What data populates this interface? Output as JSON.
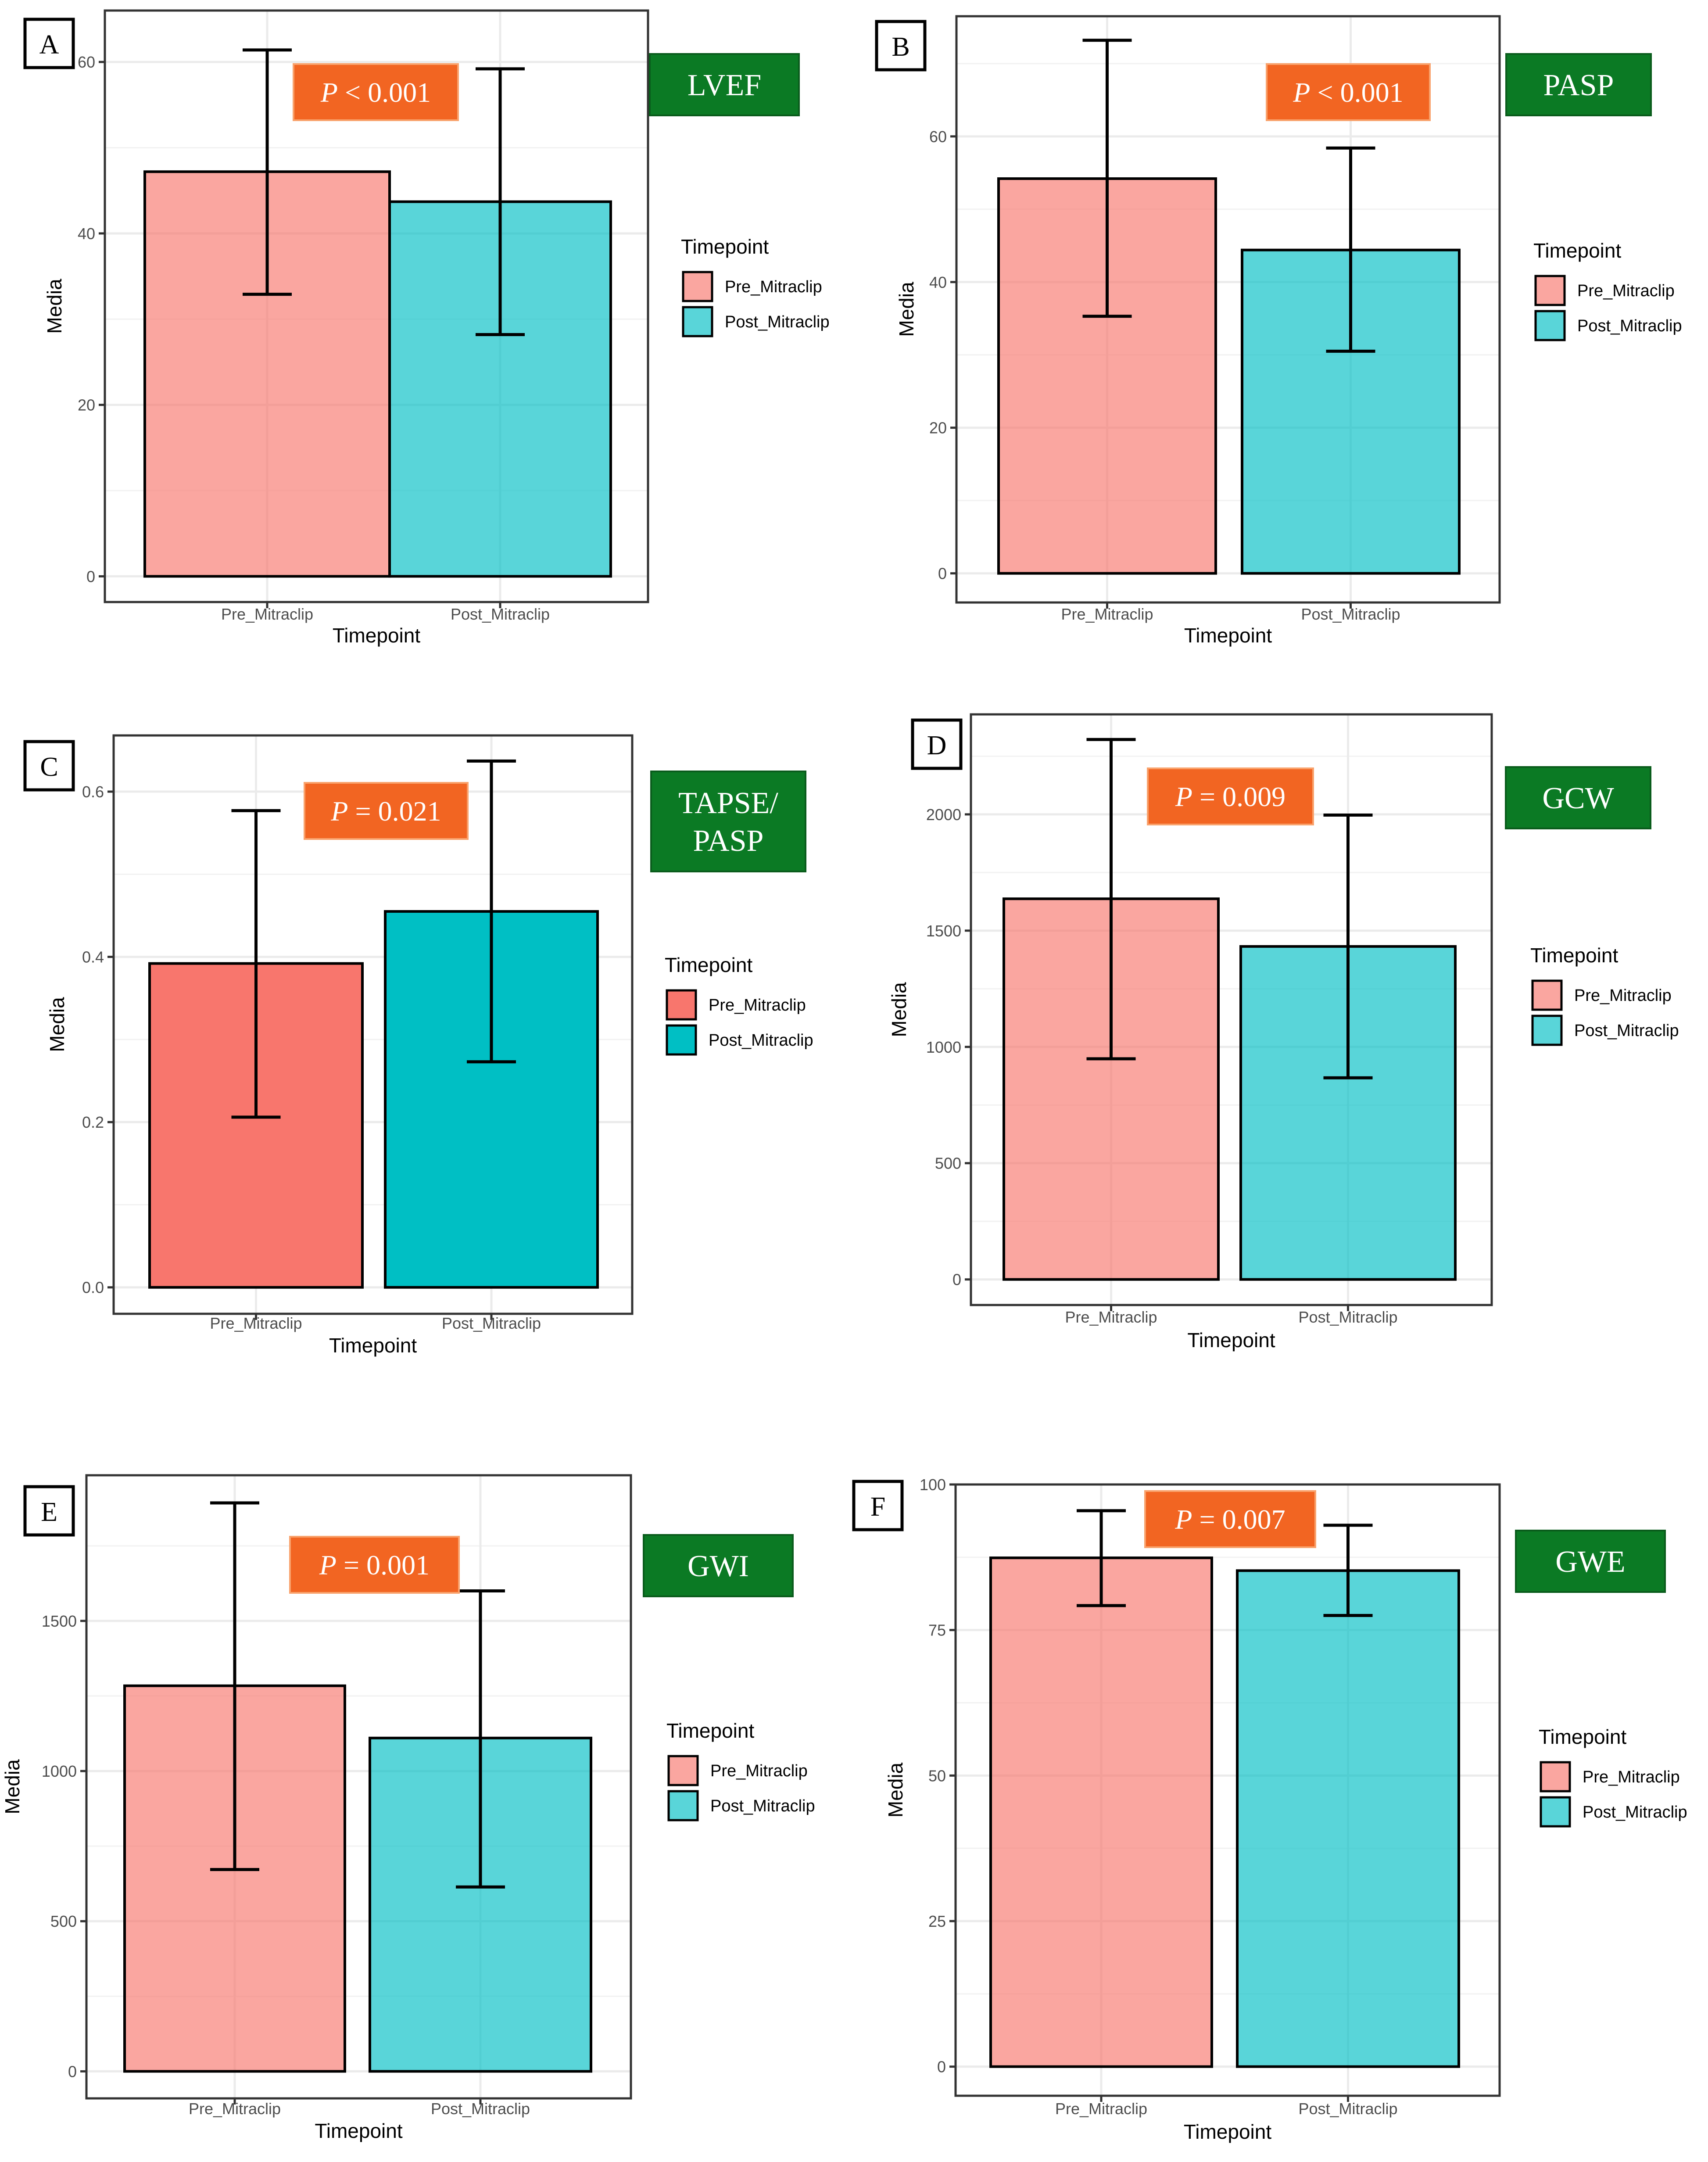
{
  "figure": {
    "legend_title": "Timepoint",
    "xlabel": "Timepoint",
    "ylabel": "Media",
    "categories": [
      "Pre_Mitraclip",
      "Post_Mitraclip"
    ],
    "colors": {
      "pre": "#F8766D",
      "post": "#00BFC4"
    }
  },
  "chart_data": [
    {
      "panel": "A",
      "type": "bar",
      "label": "LVEF",
      "pvalue": "P < 0.001",
      "categories": [
        "Pre_Mitraclip",
        "Post_Mitraclip"
      ],
      "series": [
        {
          "name": "Media",
          "values": [
            47.2,
            43.7
          ]
        }
      ],
      "error_low": [
        32.9,
        28.2
      ],
      "error_high": [
        61.4,
        59.2
      ],
      "yticks": [
        0,
        20,
        40,
        60
      ],
      "ylim": [
        -3,
        66
      ],
      "xlabel": "Timepoint",
      "ylabel": "Media",
      "legend_title": "Timepoint",
      "legend_position": "right",
      "bar_alpha": 0.65
    },
    {
      "panel": "B",
      "type": "bar",
      "label": "PASP",
      "pvalue": "P < 0.001",
      "categories": [
        "Pre_Mitraclip",
        "Post_Mitraclip"
      ],
      "series": [
        {
          "name": "Media",
          "values": [
            54.2,
            44.4
          ]
        }
      ],
      "error_low": [
        35.3,
        30.5
      ],
      "error_high": [
        73.2,
        58.4
      ],
      "yticks": [
        0,
        20,
        40,
        60
      ],
      "ylim": [
        -4,
        76.5
      ],
      "xlabel": "Timepoint",
      "ylabel": "Media",
      "legend_title": "Timepoint",
      "legend_position": "right",
      "bar_alpha": 0.65
    },
    {
      "panel": "C",
      "type": "bar",
      "label": "TAPSE/ PASP",
      "pvalue": "P = 0.021",
      "categories": [
        "Pre_Mitraclip",
        "Post_Mitraclip"
      ],
      "series": [
        {
          "name": "Media",
          "values": [
            0.392,
            0.455
          ]
        }
      ],
      "error_low": [
        0.206,
        0.273
      ],
      "error_high": [
        0.577,
        0.637
      ],
      "yticks": [
        0.0,
        0.2,
        0.4,
        0.6
      ],
      "ylim": [
        -0.032,
        0.668
      ],
      "decimals": 1,
      "xlabel": "Timepoint",
      "ylabel": "Media",
      "legend_title": "Timepoint",
      "legend_position": "right",
      "bar_alpha": 1.0
    },
    {
      "panel": "D",
      "type": "bar",
      "label": "GCW",
      "pvalue": "P = 0.009",
      "categories": [
        "Pre_Mitraclip",
        "Post_Mitraclip"
      ],
      "series": [
        {
          "name": "Media",
          "values": [
            1637,
            1432
          ]
        }
      ],
      "error_low": [
        949,
        867
      ],
      "error_high": [
        2322,
        1997
      ],
      "yticks": [
        0,
        500,
        1000,
        1500,
        2000
      ],
      "ylim": [
        -110,
        2430
      ],
      "xlabel": "Timepoint",
      "ylabel": "Media",
      "legend_title": "Timepoint",
      "legend_position": "right",
      "bar_alpha": 0.65
    },
    {
      "panel": "E",
      "type": "bar",
      "label": "GWI",
      "pvalue": "P = 0.001",
      "categories": [
        "Pre_Mitraclip",
        "Post_Mitraclip"
      ],
      "series": [
        {
          "name": "Media",
          "values": [
            1284,
            1110
          ]
        }
      ],
      "error_low": [
        672,
        614
      ],
      "error_high": [
        1893,
        1600
      ],
      "yticks": [
        0,
        500,
        1000,
        1500
      ],
      "ylim": [
        -90,
        1985
      ],
      "xlabel": "Timepoint",
      "ylabel": "Media",
      "legend_title": "Timepoint",
      "legend_position": "right",
      "bar_alpha": 0.65
    },
    {
      "panel": "F",
      "type": "bar",
      "label": "GWE",
      "pvalue": "P = 0.007",
      "categories": [
        "Pre_Mitraclip",
        "Post_Mitraclip"
      ],
      "series": [
        {
          "name": "Media",
          "values": [
            87.4,
            85.2
          ]
        }
      ],
      "error_low": [
        79.2,
        77.5
      ],
      "error_high": [
        95.5,
        93.0
      ],
      "yticks": [
        0,
        25,
        50,
        75,
        100
      ],
      "ylim": [
        -5,
        100
      ],
      "xlabel": "Timepoint",
      "ylabel": "Media",
      "legend_title": "Timepoint",
      "legend_position": "right",
      "bar_alpha": 0.65
    }
  ]
}
